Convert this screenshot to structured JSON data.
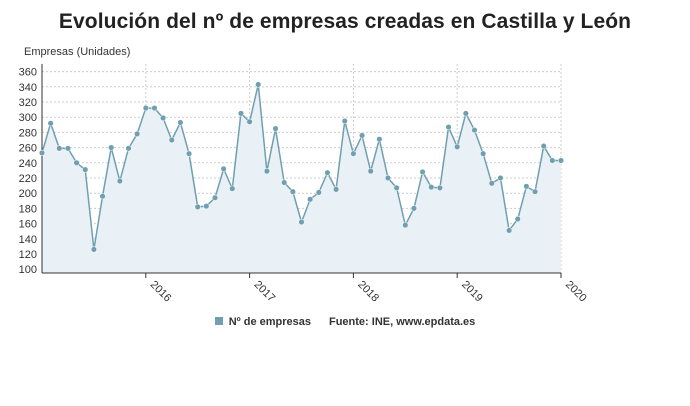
{
  "chart_data": {
    "type": "line",
    "title": "Evolución del nº de empresas creadas en Castilla y León",
    "ylabel": "Empresas (Unidades)",
    "xlabel": "",
    "ylim": [
      95,
      370
    ],
    "yticks": [
      100,
      120,
      140,
      160,
      180,
      200,
      220,
      240,
      260,
      280,
      300,
      320,
      340,
      360
    ],
    "xlim": [
      "2015-01",
      "2020-01"
    ],
    "xticks": [
      {
        "label": "2016",
        "date": "2016-01"
      },
      {
        "label": "2017",
        "date": "2017-01"
      },
      {
        "label": "2018",
        "date": "2018-01"
      },
      {
        "label": "2019",
        "date": "2019-01"
      },
      {
        "label": "2020",
        "date": "2020-01"
      }
    ],
    "grid": true,
    "area_fill": true,
    "colors": {
      "line": "#6f9fb0",
      "marker": "#6f9fb0",
      "fill": "#e9f1f6",
      "grid": "#cccccc",
      "axis": "#333333"
    },
    "series": [
      {
        "name": "Nº de empresas",
        "x": [
          "2015-01",
          "2015-02",
          "2015-03",
          "2015-04",
          "2015-05",
          "2015-06",
          "2015-07",
          "2015-08",
          "2015-09",
          "2015-10",
          "2015-11",
          "2015-12",
          "2016-01",
          "2016-02",
          "2016-03",
          "2016-04",
          "2016-05",
          "2016-06",
          "2016-07",
          "2016-08",
          "2016-09",
          "2016-10",
          "2016-11",
          "2016-12",
          "2017-01",
          "2017-02",
          "2017-03",
          "2017-04",
          "2017-05",
          "2017-06",
          "2017-07",
          "2017-08",
          "2017-09",
          "2017-10",
          "2017-11",
          "2017-12",
          "2018-01",
          "2018-02",
          "2018-03",
          "2018-04",
          "2018-05",
          "2018-06",
          "2018-07",
          "2018-08",
          "2018-09",
          "2018-10",
          "2018-11",
          "2018-12",
          "2019-01",
          "2019-02",
          "2019-03",
          "2019-04",
          "2019-05",
          "2019-06",
          "2019-07",
          "2019-08",
          "2019-09",
          "2019-10",
          "2019-11",
          "2019-12",
          "2020-01"
        ],
        "values": [
          253,
          292,
          259,
          259,
          240,
          231,
          126,
          196,
          260,
          216,
          259,
          278,
          312,
          312,
          299,
          270,
          293,
          252,
          182,
          183,
          194,
          232,
          206,
          305,
          294,
          343,
          229,
          285,
          214,
          202,
          162,
          192,
          201,
          227,
          205,
          295,
          252,
          276,
          229,
          271,
          220,
          207,
          158,
          180,
          228,
          208,
          207,
          287,
          261,
          305,
          283,
          252,
          213,
          220,
          151,
          166,
          209,
          202,
          262,
          243,
          243
        ]
      }
    ],
    "legend": "bottom-center"
  },
  "legend": {
    "series_label": "Nº de empresas",
    "source": "Fuente: INE, www.epdata.es"
  }
}
